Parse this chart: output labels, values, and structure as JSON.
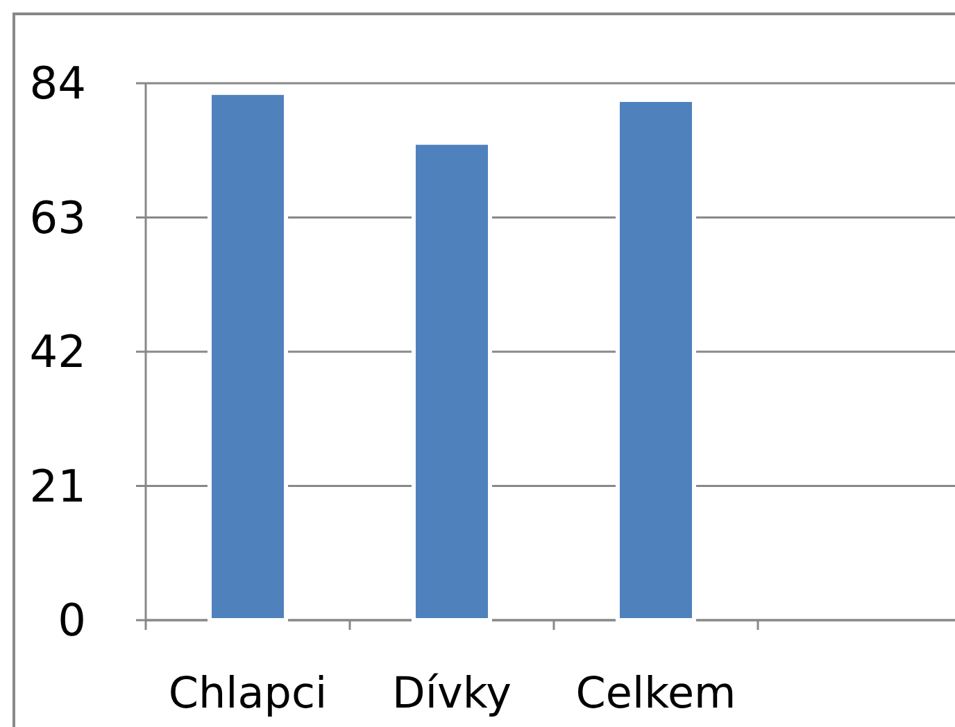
{
  "chart_data": {
    "type": "bar",
    "categories": [
      "Chlapci",
      "Dívky",
      "Celkem",
      null
    ],
    "values": [
      82.5,
      74.7,
      81.4,
      null
    ],
    "color": "#4f81bd",
    "ylim": [
      0,
      84
    ],
    "yticks": [
      0,
      21,
      42,
      63,
      84
    ],
    "grid": "y"
  }
}
